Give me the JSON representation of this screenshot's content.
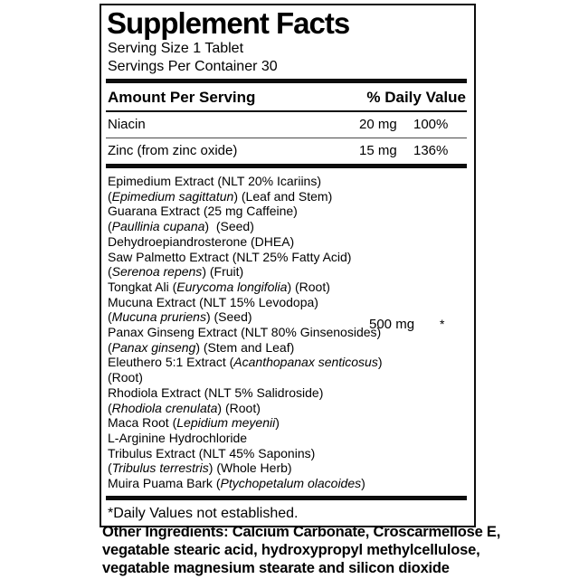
{
  "colors": {
    "ink": "#0d0d0d",
    "paper": "#ffffff",
    "row_separator": "#4a4a4a"
  },
  "label": {
    "title": "Supplement Facts",
    "serving_size": "Serving Size 1 Tablet",
    "servings_per_container": "Servings Per Container 30",
    "columns": {
      "amount_header": "Amount Per Serving",
      "daily_value_header": "% Daily Value"
    },
    "nutrients": [
      {
        "name": "Niacin",
        "amount": "20 mg",
        "dv": "100%"
      },
      {
        "name": "Zinc (from zinc oxide)",
        "amount": "15 mg",
        "dv": "136%"
      }
    ],
    "blend": {
      "amount": "500 mg",
      "dv": "*",
      "lines": [
        [
          {
            "t": "Epimedium Extract (NLT 20% Icariins)",
            "i": false
          }
        ],
        [
          {
            "t": "(",
            "i": false
          },
          {
            "t": "Epimedium sagittatun",
            "i": true
          },
          {
            "t": ") (Leaf and Stem)",
            "i": false
          }
        ],
        [
          {
            "t": "Guarana Extract (25 mg Caffeine)",
            "i": false
          }
        ],
        [
          {
            "t": "(",
            "i": false
          },
          {
            "t": "Paullinia cupana",
            "i": true
          },
          {
            "t": ")  (Seed)",
            "i": false
          }
        ],
        [
          {
            "t": "Dehydroepiandrosterone (DHEA)",
            "i": false
          }
        ],
        [
          {
            "t": "Saw Palmetto Extract (NLT 25% Fatty Acid)",
            "i": false
          }
        ],
        [
          {
            "t": "(",
            "i": false
          },
          {
            "t": "Serenoa repens",
            "i": true
          },
          {
            "t": ") (Fruit)",
            "i": false
          }
        ],
        [
          {
            "t": "Tongkat Ali (",
            "i": false
          },
          {
            "t": "Eurycoma longifolia",
            "i": true
          },
          {
            "t": ") (Root)",
            "i": false
          }
        ],
        [
          {
            "t": "Mucuna Extract (NLT 15% Levodopa)",
            "i": false
          }
        ],
        [
          {
            "t": "(",
            "i": false
          },
          {
            "t": "Mucuna pruriens",
            "i": true
          },
          {
            "t": ") (Seed)",
            "i": false
          }
        ],
        [
          {
            "t": "Panax Ginseng Extract (NLT 80% Ginsenosides)",
            "i": false
          }
        ],
        [
          {
            "t": "(",
            "i": false
          },
          {
            "t": "Panax ginseng",
            "i": true
          },
          {
            "t": ") (Stem and Leaf)",
            "i": false
          }
        ],
        [
          {
            "t": "Eleuthero 5:1 Extract (",
            "i": false
          },
          {
            "t": "Acanthopanax senticosus",
            "i": true
          },
          {
            "t": ")",
            "i": false
          }
        ],
        [
          {
            "t": "(Root)",
            "i": false
          }
        ],
        [
          {
            "t": "Rhodiola Extract (NLT 5% Salidroside)",
            "i": false
          }
        ],
        [
          {
            "t": "(",
            "i": false
          },
          {
            "t": "Rhodiola crenulata",
            "i": true
          },
          {
            "t": ") (Root)",
            "i": false
          }
        ],
        [
          {
            "t": "Maca Root (",
            "i": false
          },
          {
            "t": "Lepidium meyenii",
            "i": true
          },
          {
            "t": ")",
            "i": false
          }
        ],
        [
          {
            "t": "L-Arginine Hydrochloride",
            "i": false
          }
        ],
        [
          {
            "t": "Tribulus Extract (NLT 45% Saponins)",
            "i": false
          }
        ],
        [
          {
            "t": "(",
            "i": false
          },
          {
            "t": "Tribulus terrestris",
            "i": true
          },
          {
            "t": ") (Whole Herb)",
            "i": false
          }
        ],
        [
          {
            "t": "Muira Puama Bark (",
            "i": false
          },
          {
            "t": "Ptychopetalum olacoides",
            "i": true
          },
          {
            "t": ")",
            "i": false
          }
        ]
      ]
    },
    "footnote": "*Daily Values not established.",
    "other_ingredients_lines": [
      "Other Ingredients: Calcium Carbonate, Croscarmellose E,",
      "vegatable stearic acid, hydroxypropyl methylcellulose,",
      "vegatable magnesium stearate and silicon dioxide"
    ]
  }
}
